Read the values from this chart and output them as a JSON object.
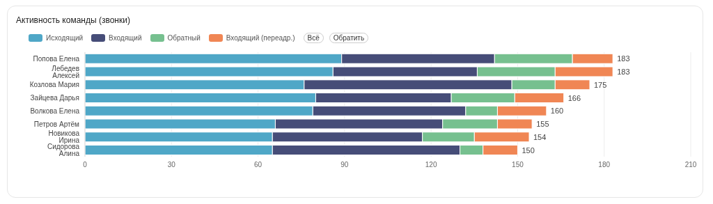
{
  "chart_data": {
    "type": "bar",
    "orientation": "horizontal",
    "stacked": true,
    "title": "Активность команды (звонки)",
    "categories": [
      "Попова Елена",
      "Лебедев Алексей",
      "Козлова Мария",
      "Зайцева Дарья",
      "Волкова Елена",
      "Петров Артём",
      "Новикова Ирина",
      "Сидорова Алина"
    ],
    "series": [
      {
        "name": "Исходящий",
        "color": "#4fa7c7",
        "values": [
          89,
          86,
          76,
          80,
          79,
          66,
          65,
          65
        ]
      },
      {
        "name": "Входящий",
        "color": "#464d78",
        "values": [
          53,
          50,
          72,
          47,
          53,
          58,
          52,
          65
        ]
      },
      {
        "name": "Обратный",
        "color": "#76c08f",
        "values": [
          27,
          27,
          15,
          22,
          11,
          19,
          18,
          8
        ]
      },
      {
        "name": "Входящий (переадр.)",
        "color": "#f08654",
        "values": [
          14,
          20,
          12,
          17,
          17,
          12,
          19,
          12
        ]
      }
    ],
    "totals": [
      "183",
      "183",
      "175",
      "166",
      "160",
      "155",
      "154",
      "150"
    ],
    "xlim": [
      0,
      210
    ],
    "xticks": [
      0,
      30,
      60,
      90,
      120,
      150,
      180,
      210
    ],
    "grid": "x",
    "legend": "top left",
    "annotations": [
      "Всё",
      "Обратить"
    ]
  }
}
